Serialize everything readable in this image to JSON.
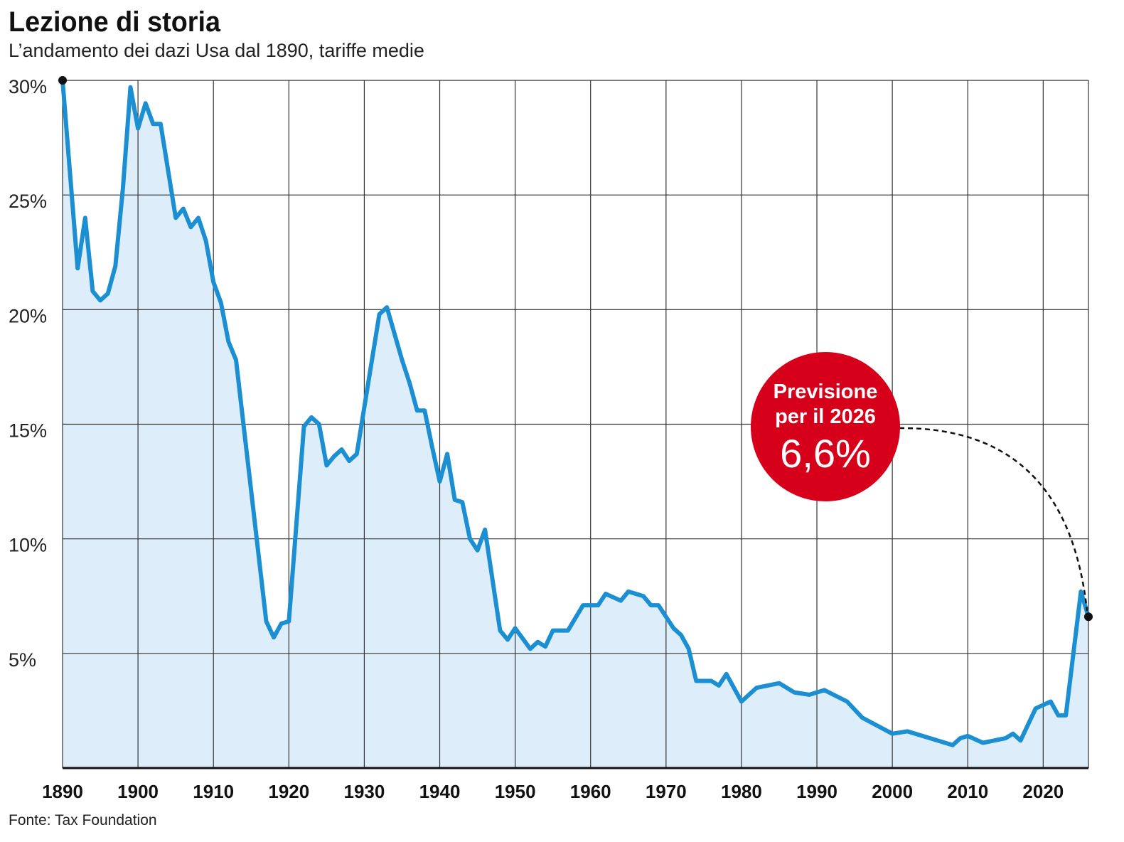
{
  "chart_data": {
    "type": "area-line",
    "title": "Lezione di storia",
    "subtitle": "L’andamento dei dazi Usa dal 1890, tariffe medie",
    "source": "Fonte: Tax Foundation",
    "x": [
      1890,
      1891,
      1892,
      1893,
      1894,
      1895,
      1896,
      1897,
      1898,
      1899,
      1900,
      1901,
      1902,
      1903,
      1905,
      1906,
      1907,
      1908,
      1909,
      1910,
      1911,
      1912,
      1913,
      1917,
      1918,
      1919,
      1920,
      1922,
      1923,
      1924,
      1925,
      1926,
      1927,
      1928,
      1929,
      1932,
      1933,
      1935,
      1936,
      1937,
      1938,
      1939,
      1940,
      1941,
      1942,
      1943,
      1944,
      1945,
      1946,
      1948,
      1949,
      1950,
      1952,
      1953,
      1954,
      1955,
      1957,
      1959,
      1961,
      1962,
      1964,
      1965,
      1967,
      1968,
      1969,
      1971,
      1972,
      1973,
      1974,
      1976,
      1977,
      1978,
      1980,
      1982,
      1985,
      1987,
      1989,
      1991,
      1994,
      1996,
      2000,
      2002,
      2008,
      2009,
      2010,
      2012,
      2015,
      2016,
      2017,
      2019,
      2021,
      2022,
      2023,
      2025,
      2026
    ],
    "values": [
      30.0,
      25.9,
      21.8,
      24.0,
      20.8,
      20.4,
      20.7,
      21.9,
      25.3,
      29.7,
      27.9,
      29.0,
      28.1,
      28.1,
      24.0,
      24.4,
      23.6,
      24.0,
      23.0,
      21.2,
      20.3,
      18.6,
      17.8,
      6.4,
      5.7,
      6.3,
      6.4,
      14.9,
      15.3,
      15.0,
      13.2,
      13.6,
      13.9,
      13.4,
      13.7,
      19.8,
      20.1,
      17.8,
      16.8,
      15.6,
      15.6,
      14.0,
      12.5,
      13.7,
      11.7,
      11.6,
      10.0,
      9.5,
      10.4,
      6.0,
      5.6,
      6.1,
      5.2,
      5.5,
      5.3,
      6.0,
      6.0,
      7.1,
      7.1,
      7.6,
      7.3,
      7.7,
      7.5,
      7.1,
      7.1,
      6.1,
      5.8,
      5.2,
      3.8,
      3.8,
      3.6,
      4.1,
      2.9,
      3.5,
      3.7,
      3.3,
      3.2,
      3.4,
      2.9,
      2.2,
      1.5,
      1.6,
      1.0,
      1.3,
      1.4,
      1.1,
      1.3,
      1.5,
      1.2,
      2.6,
      2.9,
      2.3,
      2.3,
      7.7,
      6.6
    ],
    "color": "#1b8fd2",
    "fill_color": "#ddeefa",
    "xlim": [
      1890,
      2026
    ],
    "ylim": [
      0,
      30
    ],
    "xticks": [
      1890,
      1900,
      1910,
      1920,
      1930,
      1940,
      1950,
      1960,
      1970,
      1980,
      1990,
      2000,
      2010,
      2020
    ],
    "yticks": [
      {
        "value": 5,
        "label": "5%"
      },
      {
        "value": 10,
        "label": "10%"
      },
      {
        "value": 15,
        "label": "15%"
      },
      {
        "value": 20,
        "label": "20%"
      },
      {
        "value": 25,
        "label": "25%"
      },
      {
        "value": 30,
        "label": "30%"
      }
    ],
    "grid": true,
    "annotation": {
      "lines": [
        "Previsione",
        "per il 2026"
      ],
      "label": "6,6%",
      "color": "#d7001b"
    }
  }
}
